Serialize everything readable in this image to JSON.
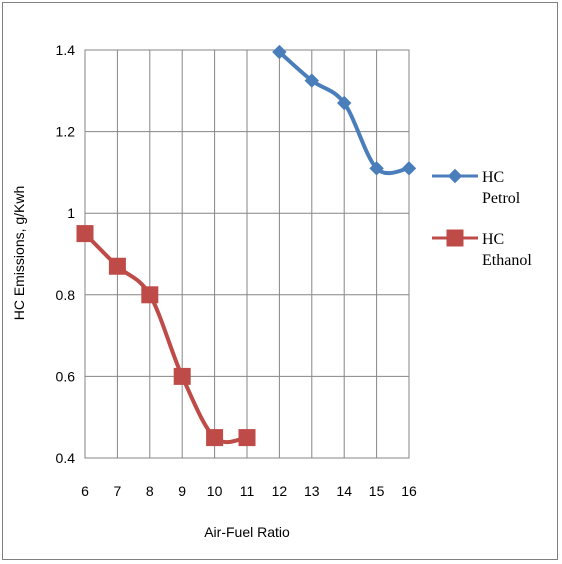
{
  "chart_data": {
    "type": "line",
    "xlabel": "Air-Fuel Ratio",
    "ylabel": "HC Emissions, g/Kwh",
    "xlim": [
      6,
      16
    ],
    "ylim": [
      0.4,
      1.4
    ],
    "x_ticks": [
      "6",
      "7",
      "8",
      "9",
      "10",
      "11",
      "12",
      "13",
      "14",
      "15",
      "16"
    ],
    "y_ticks": [
      "0.4",
      "0.6",
      "0.8",
      "1",
      "1.2",
      "1.4"
    ],
    "grid": true,
    "legend_position": "right",
    "series": [
      {
        "name": "HC Petrol",
        "legend_lines": [
          "HC",
          "Petrol"
        ],
        "color": "#4a7ebb",
        "marker": "diamond",
        "x": [
          12,
          13,
          14,
          15,
          16
        ],
        "y": [
          1.395,
          1.325,
          1.27,
          1.11,
          1.11
        ]
      },
      {
        "name": "HC Ethanol",
        "legend_lines": [
          "HC",
          "Ethanol"
        ],
        "color": "#be4b48",
        "marker": "square",
        "x": [
          6,
          7,
          8,
          9,
          10,
          11
        ],
        "y": [
          0.95,
          0.87,
          0.8,
          0.6,
          0.45,
          0.45
        ]
      }
    ]
  }
}
